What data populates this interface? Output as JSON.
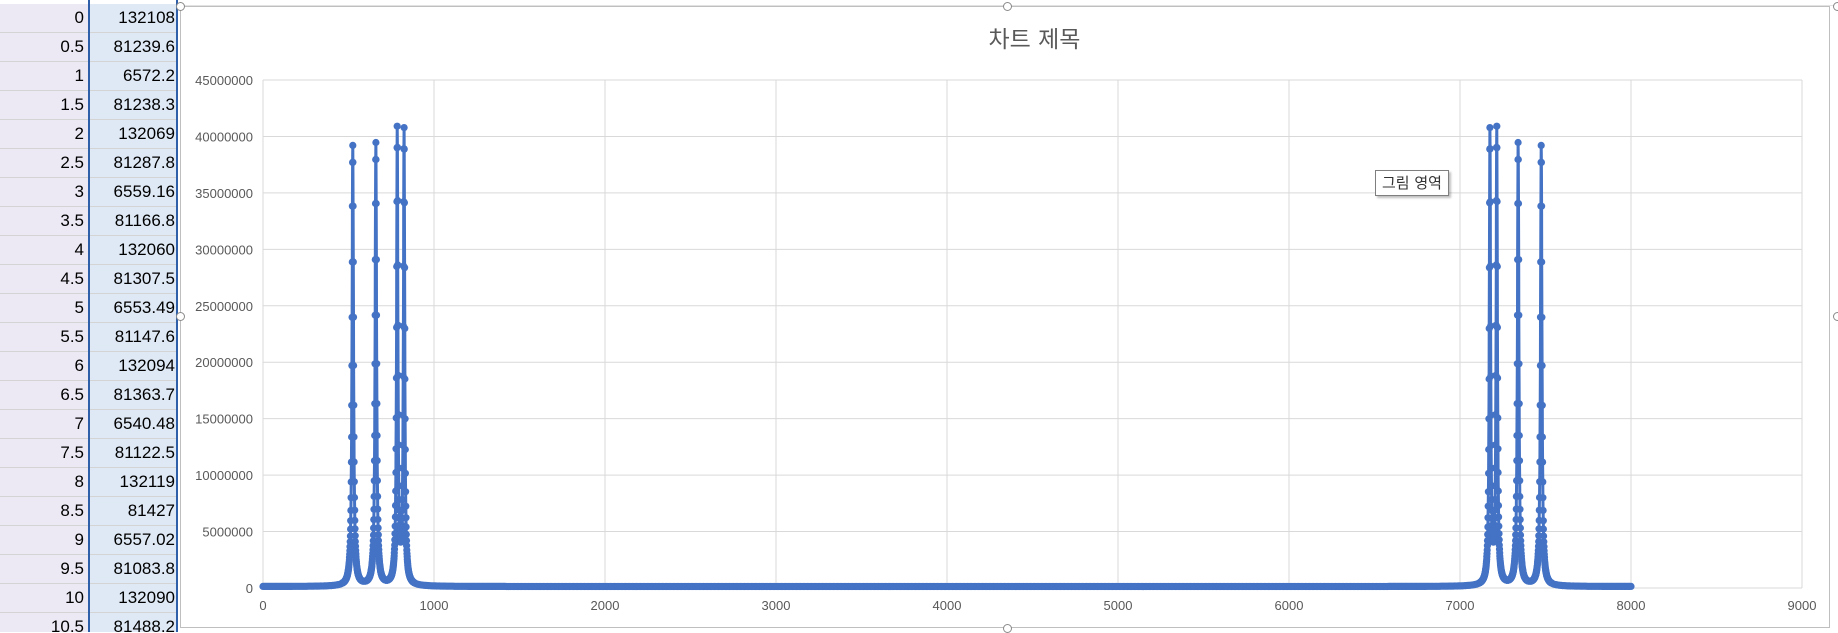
{
  "sheet": {
    "rows": [
      {
        "a": "0",
        "b": "132108"
      },
      {
        "a": "0.5",
        "b": "81239.6"
      },
      {
        "a": "1",
        "b": "6572.2"
      },
      {
        "a": "1.5",
        "b": "81238.3"
      },
      {
        "a": "2",
        "b": "132069"
      },
      {
        "a": "2.5",
        "b": "81287.8"
      },
      {
        "a": "3",
        "b": "6559.16"
      },
      {
        "a": "3.5",
        "b": "81166.8"
      },
      {
        "a": "4",
        "b": "132060"
      },
      {
        "a": "4.5",
        "b": "81307.5"
      },
      {
        "a": "5",
        "b": "6553.49"
      },
      {
        "a": "5.5",
        "b": "81147.6"
      },
      {
        "a": "6",
        "b": "132094"
      },
      {
        "a": "6.5",
        "b": "81363.7"
      },
      {
        "a": "7",
        "b": "6540.48"
      },
      {
        "a": "7.5",
        "b": "81122.5"
      },
      {
        "a": "8",
        "b": "132119"
      },
      {
        "a": "8.5",
        "b": "81427"
      },
      {
        "a": "9",
        "b": "6557.02"
      },
      {
        "a": "9.5",
        "b": "81083.8"
      },
      {
        "a": "10",
        "b": "132090"
      },
      {
        "a": "10.5",
        "b": "81488.2"
      }
    ]
  },
  "tooltip": "그림 영역",
  "colors": {
    "series": "#4472c4",
    "grid": "#d9d9d9",
    "title": "#595959",
    "axis_text": "#595959"
  },
  "chart_data": {
    "type": "scatter",
    "title": "차트 제목",
    "xlabel": "",
    "ylabel": "",
    "xlim": [
      0,
      9000
    ],
    "ylim": [
      0,
      45000000
    ],
    "x_ticks": [
      0,
      1000,
      2000,
      3000,
      4000,
      5000,
      6000,
      7000,
      8000,
      9000
    ],
    "y_ticks": [
      0,
      5000000,
      10000000,
      15000000,
      20000000,
      25000000,
      30000000,
      35000000,
      40000000,
      45000000
    ],
    "x_tick_labels": [
      "0",
      "1000",
      "2000",
      "3000",
      "4000",
      "5000",
      "6000",
      "7000",
      "8000",
      "9000"
    ],
    "y_tick_labels": [
      "0",
      "5000000",
      "10000000",
      "15000000",
      "20000000",
      "25000000",
      "30000000",
      "35000000",
      "40000000",
      "45000000"
    ],
    "grid": true,
    "legend": "none",
    "markers": "circle",
    "line": true,
    "x_range_data": [
      0,
      8000
    ],
    "baseline": 130000,
    "peaks": [
      {
        "x": 525,
        "y": 39000000,
        "width": 10
      },
      {
        "x": 660,
        "y": 39200000,
        "width": 10
      },
      {
        "x": 785,
        "y": 40200000,
        "width": 9
      },
      {
        "x": 825,
        "y": 40100000,
        "width": 9
      },
      {
        "x": 7175,
        "y": 40100000,
        "width": 9
      },
      {
        "x": 7215,
        "y": 40200000,
        "width": 9
      },
      {
        "x": 7340,
        "y": 39200000,
        "width": 10
      },
      {
        "x": 7475,
        "y": 39000000,
        "width": 10
      }
    ]
  }
}
